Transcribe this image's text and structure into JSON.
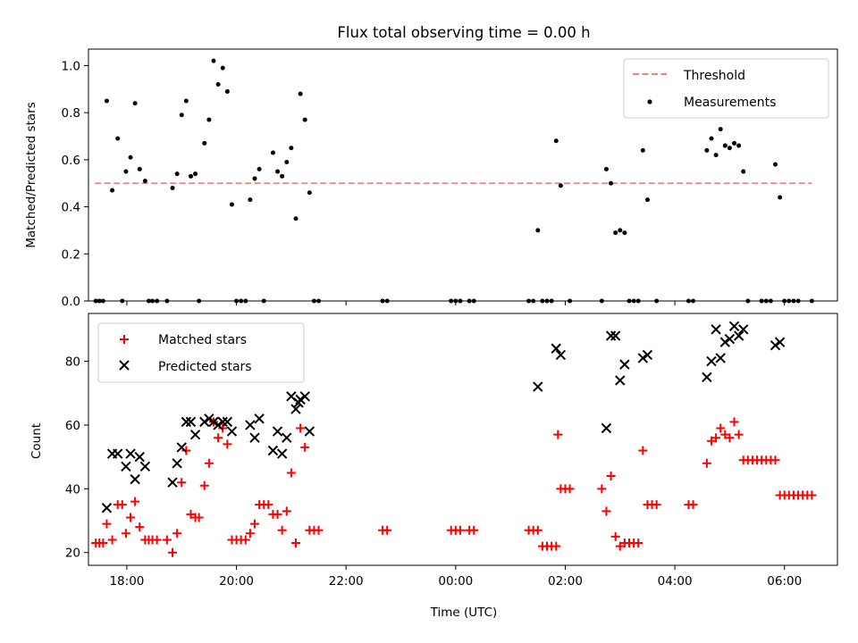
{
  "chart_data": [
    {
      "type": "scatter",
      "title": "Flux total observing time = 0.00 h",
      "xlabel": "",
      "ylabel": "Matched/Predicted stars",
      "xlim": [
        "17:18",
        "06:58"
      ],
      "ylim": [
        0,
        1.07
      ],
      "grid": false,
      "yticks": [
        0.0,
        0.2,
        0.4,
        0.6,
        0.8,
        1.0
      ],
      "ytick_labels": [
        "0.0",
        "0.2",
        "0.4",
        "0.6",
        "0.8",
        "1.0"
      ],
      "legend_position": "top-right",
      "legend": [
        "Threshold",
        "Measurements"
      ],
      "threshold": {
        "name": "Threshold",
        "y": 0.5,
        "x_start": "17:25",
        "x_end": "06:30",
        "color": "#f08080",
        "style": "dashed"
      },
      "series": [
        {
          "name": "Measurements",
          "color": "#000000",
          "marker": "dot",
          "points": [
            [
              "17:26",
              0
            ],
            [
              "17:30",
              0
            ],
            [
              "17:34",
              0
            ],
            [
              "17:38",
              0.85
            ],
            [
              "17:44",
              0.47
            ],
            [
              "17:50",
              0.69
            ],
            [
              "17:55",
              0
            ],
            [
              "17:59",
              0.55
            ],
            [
              "18:04",
              0.61
            ],
            [
              "18:09",
              0.84
            ],
            [
              "18:14",
              0.56
            ],
            [
              "18:20",
              0.51
            ],
            [
              "18:24",
              0
            ],
            [
              "18:28",
              0
            ],
            [
              "18:33",
              0
            ],
            [
              "18:44",
              0
            ],
            [
              "18:50",
              0.48
            ],
            [
              "18:55",
              0.54
            ],
            [
              "19:00",
              0.79
            ],
            [
              "19:05",
              0.85
            ],
            [
              "19:10",
              0.53
            ],
            [
              "19:15",
              0.54
            ],
            [
              "19:19",
              0
            ],
            [
              "19:25",
              0.67
            ],
            [
              "19:30",
              0.77
            ],
            [
              "19:35",
              1.02
            ],
            [
              "19:40",
              0.92
            ],
            [
              "19:45",
              0.99
            ],
            [
              "19:50",
              0.89
            ],
            [
              "19:55",
              0.41
            ],
            [
              "20:00",
              0
            ],
            [
              "20:05",
              0
            ],
            [
              "20:10",
              0
            ],
            [
              "20:15",
              0.43
            ],
            [
              "20:20",
              0.52
            ],
            [
              "20:25",
              0.56
            ],
            [
              "20:30",
              0
            ],
            [
              "20:40",
              0.63
            ],
            [
              "20:45",
              0.55
            ],
            [
              "20:50",
              0.53
            ],
            [
              "20:55",
              0.59
            ],
            [
              "21:00",
              0.65
            ],
            [
              "21:05",
              0.35
            ],
            [
              "21:10",
              0.88
            ],
            [
              "21:15",
              0.77
            ],
            [
              "21:20",
              0.46
            ],
            [
              "21:25",
              0
            ],
            [
              "21:30",
              0
            ],
            [
              "22:40",
              0
            ],
            [
              "22:45",
              0
            ],
            [
              "23:55",
              0
            ],
            [
              "24:00",
              0
            ],
            [
              "24:05",
              0
            ],
            [
              "24:15",
              0
            ],
            [
              "24:20",
              0
            ],
            [
              "25:20",
              0
            ],
            [
              "25:25",
              0
            ],
            [
              "25:30",
              0.3
            ],
            [
              "25:35",
              0
            ],
            [
              "25:40",
              0
            ],
            [
              "25:45",
              0
            ],
            [
              "25:50",
              0.68
            ],
            [
              "25:55",
              0.49
            ],
            [
              "26:05",
              0
            ],
            [
              "26:40",
              0
            ],
            [
              "26:45",
              0.56
            ],
            [
              "26:50",
              0.5
            ],
            [
              "26:55",
              0.29
            ],
            [
              "27:00",
              0.3
            ],
            [
              "27:05",
              0.29
            ],
            [
              "27:10",
              0
            ],
            [
              "27:15",
              0
            ],
            [
              "27:20",
              0
            ],
            [
              "27:25",
              0.64
            ],
            [
              "27:30",
              0.43
            ],
            [
              "27:40",
              0
            ],
            [
              "28:15",
              0
            ],
            [
              "28:20",
              0
            ],
            [
              "28:35",
              0.64
            ],
            [
              "28:40",
              0.69
            ],
            [
              "28:45",
              0.62
            ],
            [
              "28:50",
              0.73
            ],
            [
              "28:55",
              0.66
            ],
            [
              "29:00",
              0.65
            ],
            [
              "29:05",
              0.67
            ],
            [
              "29:10",
              0.66
            ],
            [
              "29:15",
              0.55
            ],
            [
              "29:20",
              0
            ],
            [
              "29:35",
              0
            ],
            [
              "29:40",
              0
            ],
            [
              "29:45",
              0
            ],
            [
              "29:50",
              0.58
            ],
            [
              "29:55",
              0.44
            ],
            [
              "30:00",
              0
            ],
            [
              "30:05",
              0
            ],
            [
              "30:10",
              0
            ],
            [
              "30:15",
              0
            ],
            [
              "30:30",
              0
            ]
          ]
        }
      ]
    },
    {
      "type": "scatter",
      "title": "",
      "xlabel": "Time (UTC)",
      "ylabel": "Count",
      "xlim": [
        "17:18",
        "06:58"
      ],
      "ylim": [
        16,
        95
      ],
      "grid": false,
      "yticks": [
        20,
        40,
        60,
        80
      ],
      "ytick_labels": [
        "20",
        "40",
        "60",
        "80"
      ],
      "xticks": [
        "18:00",
        "20:00",
        "22:00",
        "00:00",
        "02:00",
        "04:00",
        "06:00"
      ],
      "legend_position": "top-left",
      "legend": [
        "Matched stars",
        "Predicted stars"
      ],
      "series": [
        {
          "name": "Matched stars",
          "color": "#ff0000",
          "marker": "plus",
          "points": [
            [
              "17:26",
              23
            ],
            [
              "17:30",
              23
            ],
            [
              "17:34",
              23
            ],
            [
              "17:38",
              29
            ],
            [
              "17:44",
              24
            ],
            [
              "17:50",
              35
            ],
            [
              "17:55",
              35
            ],
            [
              "17:59",
              26
            ],
            [
              "18:04",
              31
            ],
            [
              "18:09",
              36
            ],
            [
              "18:14",
              28
            ],
            [
              "18:20",
              24
            ],
            [
              "18:24",
              24
            ],
            [
              "18:28",
              24
            ],
            [
              "18:33",
              24
            ],
            [
              "18:44",
              24
            ],
            [
              "18:50",
              20
            ],
            [
              "18:55",
              26
            ],
            [
              "19:00",
              42
            ],
            [
              "19:05",
              52
            ],
            [
              "19:10",
              32
            ],
            [
              "19:15",
              31
            ],
            [
              "19:19",
              31
            ],
            [
              "19:25",
              41
            ],
            [
              "19:30",
              48
            ],
            [
              "19:35",
              61
            ],
            [
              "19:40",
              56
            ],
            [
              "19:45",
              59
            ],
            [
              "19:50",
              54
            ],
            [
              "19:55",
              24
            ],
            [
              "20:00",
              24
            ],
            [
              "20:05",
              24
            ],
            [
              "20:10",
              24
            ],
            [
              "20:15",
              26
            ],
            [
              "20:20",
              29
            ],
            [
              "20:25",
              35
            ],
            [
              "20:30",
              35
            ],
            [
              "20:35",
              35
            ],
            [
              "20:40",
              32
            ],
            [
              "20:45",
              32
            ],
            [
              "20:50",
              27
            ],
            [
              "20:55",
              33
            ],
            [
              "21:00",
              45
            ],
            [
              "21:05",
              23
            ],
            [
              "21:10",
              59
            ],
            [
              "21:15",
              53
            ],
            [
              "21:20",
              27
            ],
            [
              "21:25",
              27
            ],
            [
              "21:30",
              27
            ],
            [
              "22:40",
              27
            ],
            [
              "22:45",
              27
            ],
            [
              "23:55",
              27
            ],
            [
              "24:00",
              27
            ],
            [
              "24:05",
              27
            ],
            [
              "24:15",
              27
            ],
            [
              "24:20",
              27
            ],
            [
              "25:20",
              27
            ],
            [
              "25:25",
              27
            ],
            [
              "25:30",
              27
            ],
            [
              "25:35",
              22
            ],
            [
              "25:40",
              22
            ],
            [
              "25:45",
              22
            ],
            [
              "25:50",
              22
            ],
            [
              "25:52",
              57
            ],
            [
              "25:55",
              40
            ],
            [
              "26:00",
              40
            ],
            [
              "26:05",
              40
            ],
            [
              "26:40",
              40
            ],
            [
              "26:45",
              33
            ],
            [
              "26:50",
              44
            ],
            [
              "26:55",
              25
            ],
            [
              "27:00",
              22
            ],
            [
              "27:05",
              23
            ],
            [
              "27:10",
              23
            ],
            [
              "27:15",
              23
            ],
            [
              "27:20",
              23
            ],
            [
              "27:25",
              52
            ],
            [
              "27:30",
              35
            ],
            [
              "27:35",
              35
            ],
            [
              "27:40",
              35
            ],
            [
              "28:15",
              35
            ],
            [
              "28:20",
              35
            ],
            [
              "28:35",
              48
            ],
            [
              "28:40",
              55
            ],
            [
              "28:45",
              56
            ],
            [
              "28:50",
              59
            ],
            [
              "28:55",
              57
            ],
            [
              "29:00",
              56
            ],
            [
              "29:05",
              61
            ],
            [
              "29:10",
              57
            ],
            [
              "29:15",
              49
            ],
            [
              "29:20",
              49
            ],
            [
              "29:25",
              49
            ],
            [
              "29:30",
              49
            ],
            [
              "29:35",
              49
            ],
            [
              "29:40",
              49
            ],
            [
              "29:45",
              49
            ],
            [
              "29:50",
              49
            ],
            [
              "29:55",
              38
            ],
            [
              "30:00",
              38
            ],
            [
              "30:05",
              38
            ],
            [
              "30:10",
              38
            ],
            [
              "30:15",
              38
            ],
            [
              "30:20",
              38
            ],
            [
              "30:25",
              38
            ],
            [
              "30:30",
              38
            ]
          ]
        },
        {
          "name": "Predicted stars",
          "color": "#000000",
          "marker": "x",
          "points": [
            [
              "17:38",
              34
            ],
            [
              "17:44",
              51
            ],
            [
              "17:50",
              51
            ],
            [
              "17:59",
              47
            ],
            [
              "18:04",
              51
            ],
            [
              "18:09",
              43
            ],
            [
              "18:14",
              50
            ],
            [
              "18:20",
              47
            ],
            [
              "18:50",
              42
            ],
            [
              "18:55",
              48
            ],
            [
              "19:00",
              53
            ],
            [
              "19:05",
              61
            ],
            [
              "19:10",
              61
            ],
            [
              "19:15",
              57
            ],
            [
              "19:25",
              61
            ],
            [
              "19:30",
              62
            ],
            [
              "19:35",
              61
            ],
            [
              "19:40",
              60
            ],
            [
              "19:45",
              61
            ],
            [
              "19:50",
              61
            ],
            [
              "19:55",
              58
            ],
            [
              "20:15",
              60
            ],
            [
              "20:20",
              56
            ],
            [
              "20:25",
              62
            ],
            [
              "20:40",
              52
            ],
            [
              "20:45",
              58
            ],
            [
              "20:50",
              51
            ],
            [
              "20:55",
              56
            ],
            [
              "21:00",
              69
            ],
            [
              "21:05",
              65
            ],
            [
              "21:08",
              67
            ],
            [
              "21:10",
              68
            ],
            [
              "21:15",
              69
            ],
            [
              "21:20",
              58
            ],
            [
              "25:30",
              72
            ],
            [
              "25:50",
              84
            ],
            [
              "25:55",
              82
            ],
            [
              "26:45",
              59
            ],
            [
              "26:50",
              88
            ],
            [
              "26:55",
              88
            ],
            [
              "27:00",
              74
            ],
            [
              "27:05",
              79
            ],
            [
              "27:25",
              81
            ],
            [
              "27:30",
              82
            ],
            [
              "28:35",
              75
            ],
            [
              "28:40",
              80
            ],
            [
              "28:45",
              90
            ],
            [
              "28:50",
              81
            ],
            [
              "28:55",
              86
            ],
            [
              "29:00",
              87
            ],
            [
              "29:05",
              91
            ],
            [
              "29:10",
              88
            ],
            [
              "29:15",
              90
            ],
            [
              "29:50",
              85
            ],
            [
              "29:55",
              86
            ]
          ]
        }
      ]
    }
  ]
}
